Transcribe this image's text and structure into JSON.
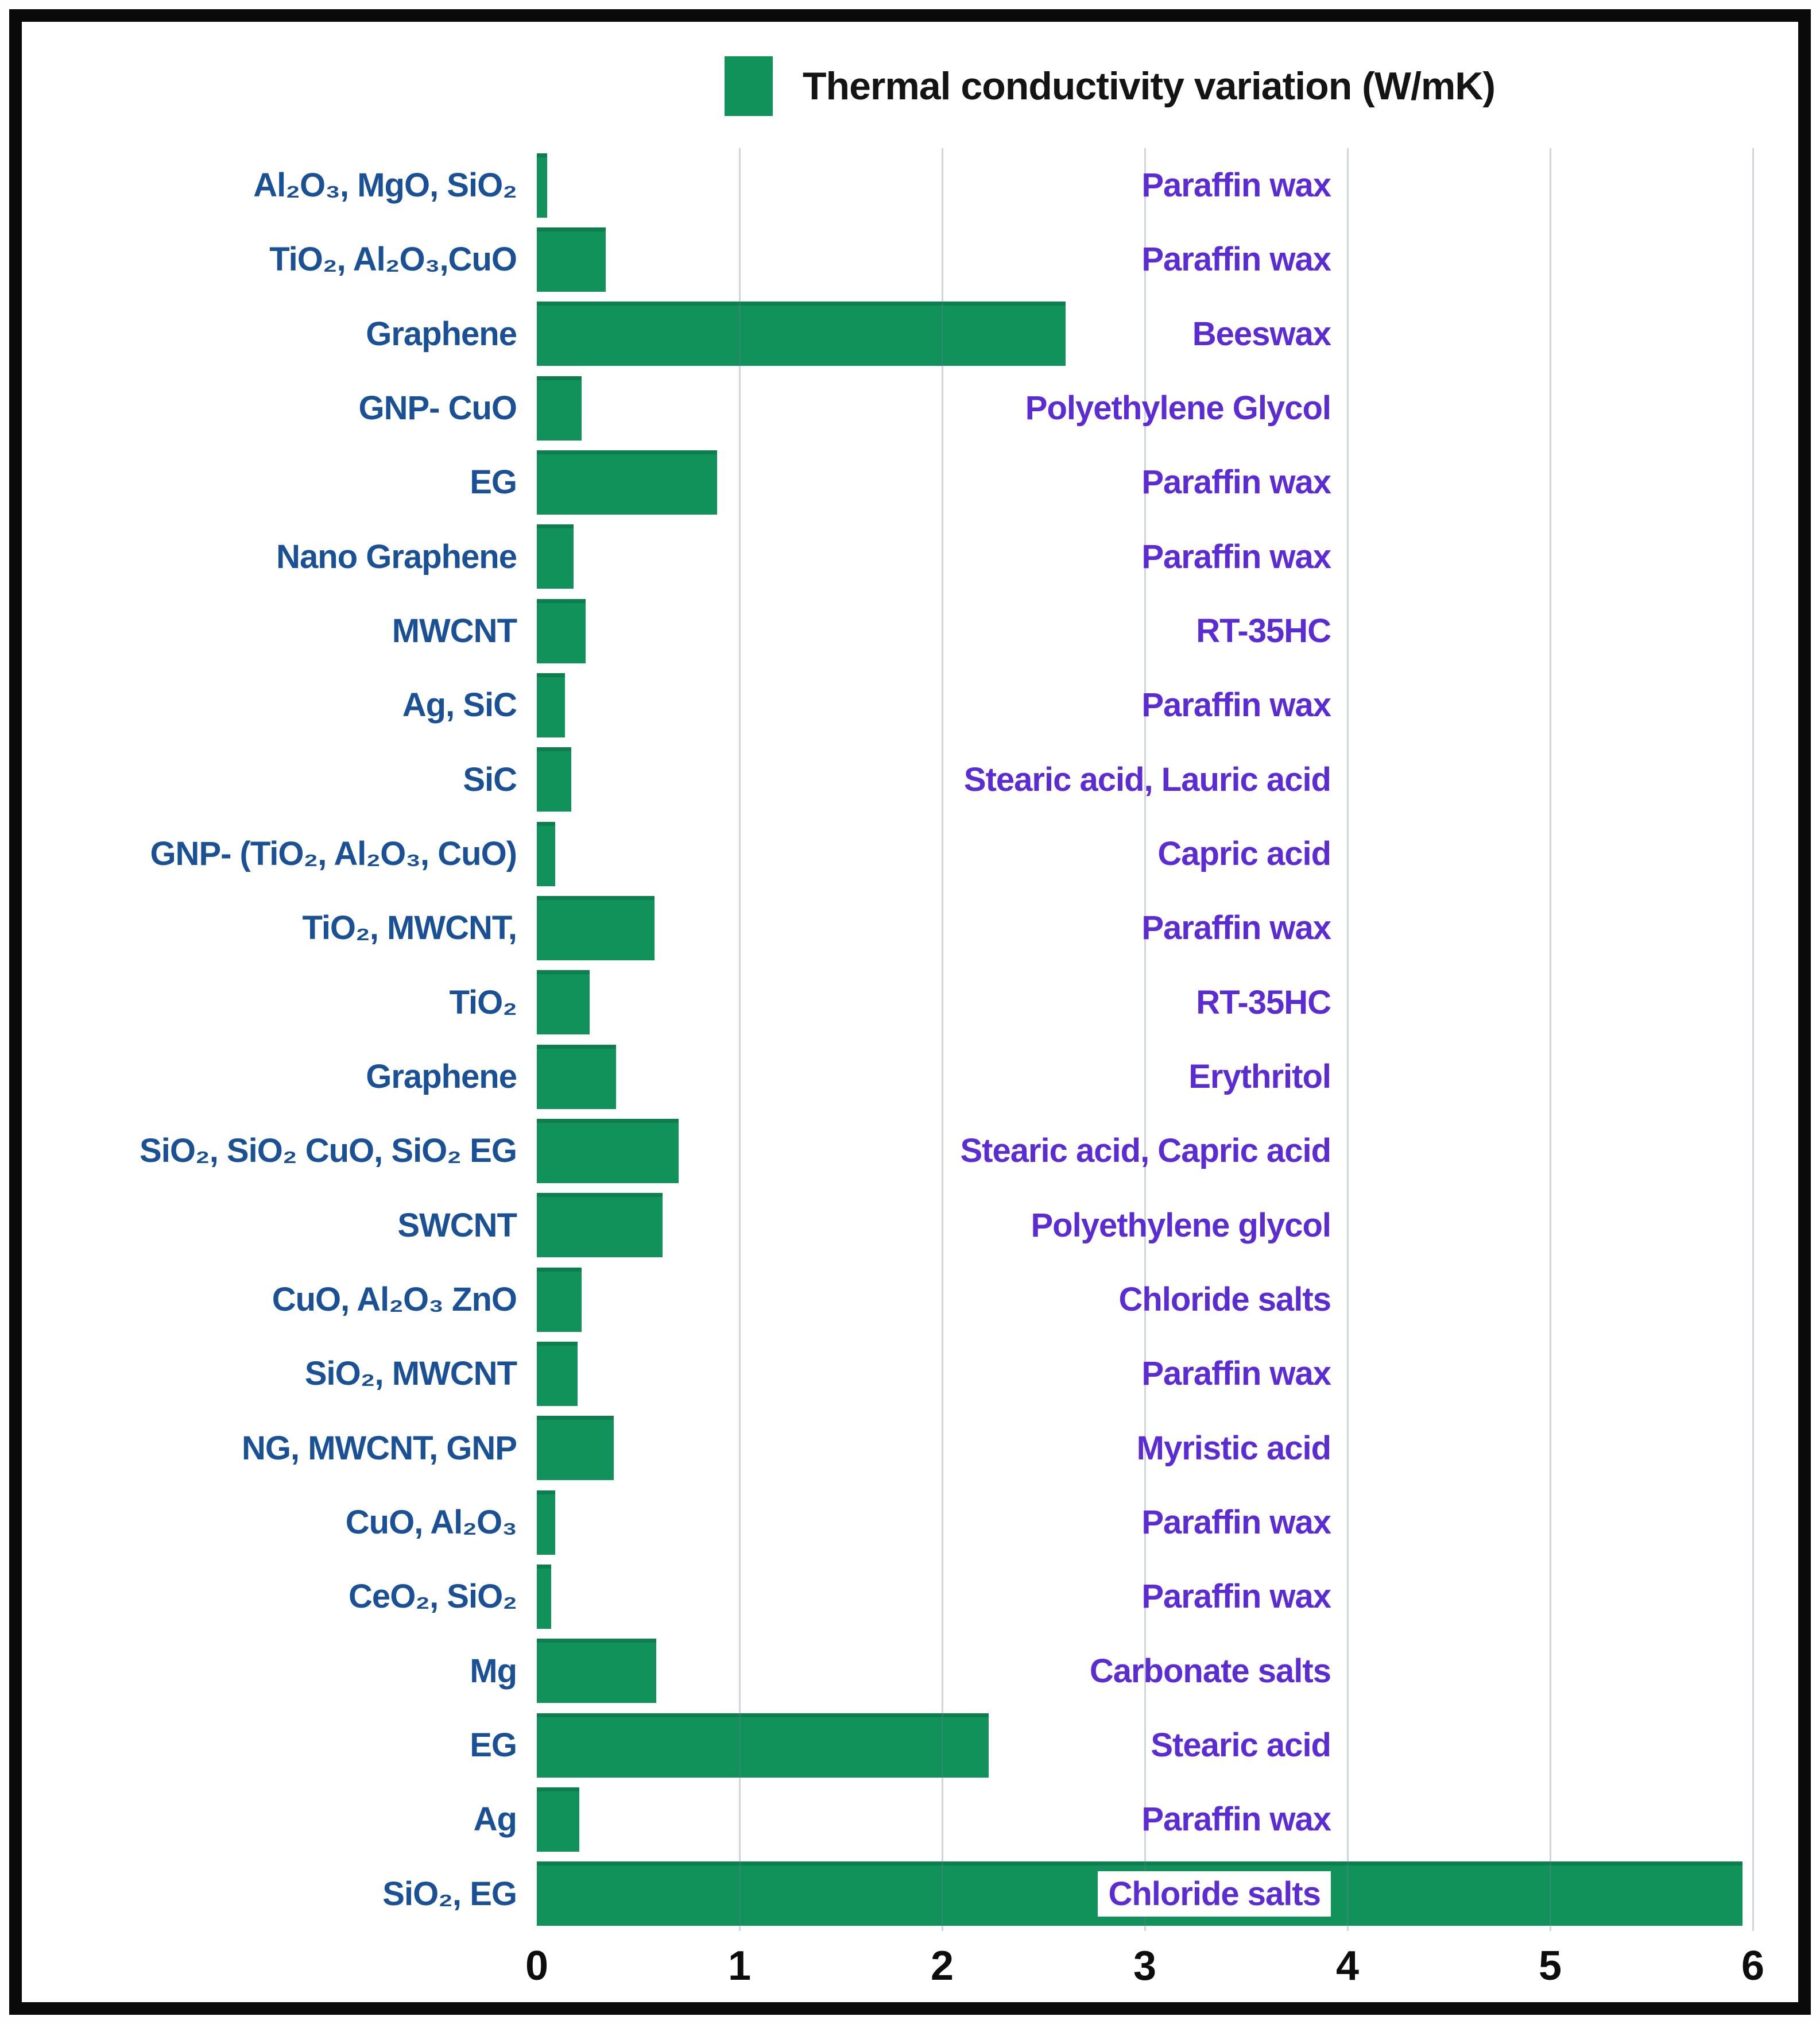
{
  "legend": {
    "swatch_color": "#10925a",
    "label": "Thermal conductivity variation (W/mK)"
  },
  "colors": {
    "bar_green": "#10925a",
    "additive_blue": "#1a5096",
    "pcm_purple": "#5b2bd3",
    "gridline": "#c9cfdb",
    "frame_black": "#0a0a0a"
  },
  "chart_data": {
    "type": "bar",
    "orientation": "horizontal",
    "title": "Thermal conductivity variation (W/mK)",
    "legend_position": "top",
    "grid": "vertical",
    "xlim": [
      0,
      6
    ],
    "xticks": [
      "0",
      "1",
      "2",
      "3",
      "4",
      "5",
      "6"
    ],
    "xlabel": "",
    "ylabel": "",
    "categories": [
      "Al₂O₃, MgO, SiO₂",
      "TiO₂, Al₂O₃,CuO",
      "Graphene",
      "GNP- CuO",
      "EG",
      "Nano Graphene",
      "MWCNT",
      "Ag, SiC",
      "SiC",
      "GNP- (TiO₂, Al₂O₃, CuO)",
      "TiO₂, MWCNT,",
      "TiO₂",
      "Graphene",
      "SiO₂, SiO₂ CuO, SiO₂ EG",
      "SWCNT",
      "CuO, Al₂O₃ ZnO",
      "SiO₂, MWCNT",
      "NG, MWCNT, GNP",
      "CuO, Al₂O₃",
      "CeO₂, SiO₂",
      "Mg",
      "EG",
      "Ag",
      "SiO₂, EG"
    ],
    "pcm_labels": [
      "Paraffin wax",
      "Paraffin wax",
      "Beeswax",
      "Polyethylene Glycol",
      "Paraffin wax",
      "Paraffin wax",
      "RT-35HC",
      "Paraffin wax",
      "Stearic acid, Lauric acid",
      "Capric acid",
      "Paraffin wax",
      "RT-35HC",
      "Erythritol",
      "Stearic acid, Capric acid",
      "Polyethylene glycol",
      "Chloride salts",
      "Paraffin wax",
      "Myristic acid",
      "Paraffin wax",
      "Paraffin wax",
      "Carbonate salts",
      "Stearic acid",
      "Paraffin wax",
      "Chloride salts"
    ],
    "series": [
      {
        "name": "Thermal conductivity variation (W/mK)",
        "values": [
          0.05,
          0.34,
          2.61,
          0.22,
          0.89,
          0.18,
          0.24,
          0.14,
          0.17,
          0.09,
          0.58,
          0.26,
          0.39,
          0.7,
          0.62,
          0.22,
          0.2,
          0.38,
          0.09,
          0.07,
          0.59,
          2.23,
          0.21,
          5.95
        ]
      }
    ],
    "highlighted_pcm_label_index": 23
  }
}
